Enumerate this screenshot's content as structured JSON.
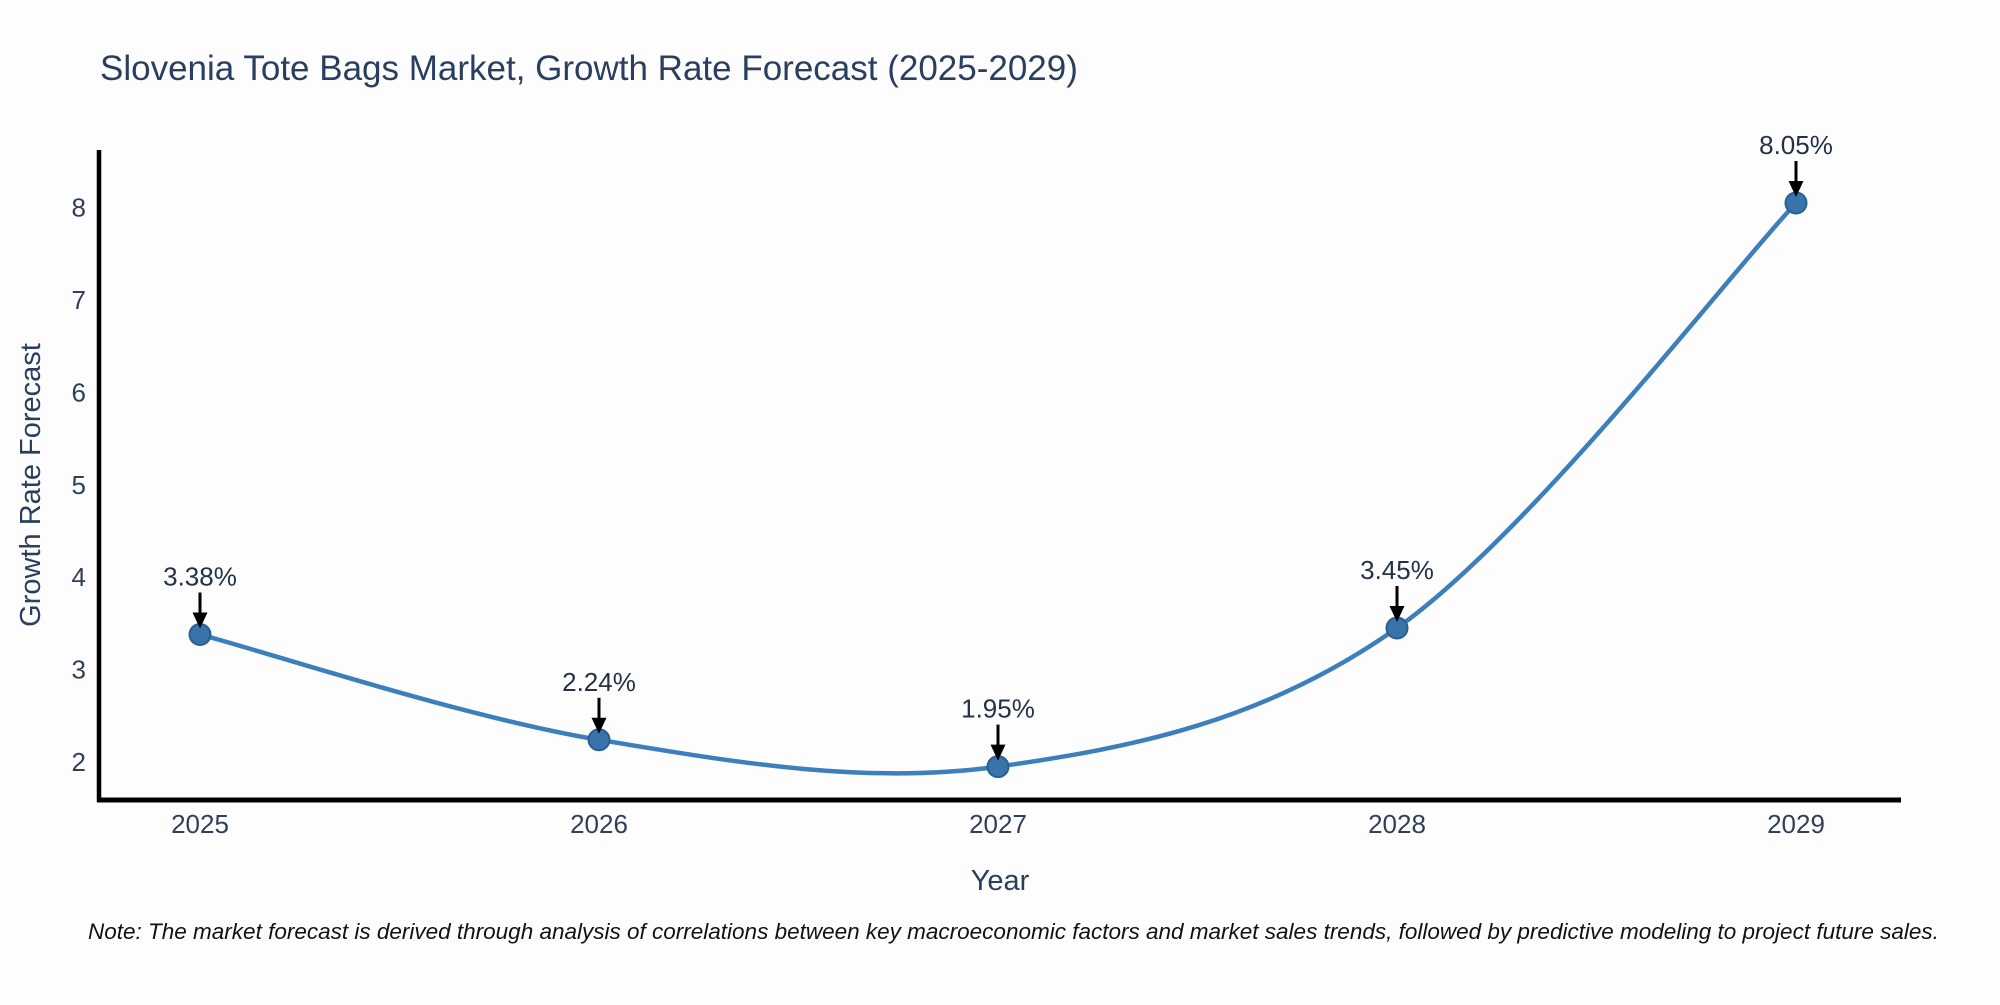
{
  "title": "Slovenia Tote Bags Market, Growth Rate Forecast (2025-2029)",
  "note": "Note: The market forecast is derived through analysis of correlations between key macroeconomic factors and market sales trends, followed by predictive modeling to project future sales.",
  "colors": {
    "line": "#3d7fba",
    "marker_fill": "#3873aa",
    "marker_edge": "#2b5f91",
    "axis_spine": "#000000",
    "text": "#2a3f5f",
    "tick_text": "#31405a",
    "annotation_text": "#243247",
    "arrow": "#000000",
    "note_text": "#111111",
    "background": "#fdfdfd"
  },
  "chart_data": {
    "type": "line",
    "title": "Slovenia Tote Bags Market, Growth Rate Forecast (2025-2029)",
    "xlabel": "Year",
    "ylabel": "Growth Rate Forecast",
    "x": [
      2025,
      2026,
      2027,
      2028,
      2029
    ],
    "series": [
      {
        "name": "Growth Rate Forecast",
        "values": [
          3.38,
          2.24,
          1.95,
          3.45,
          8.05
        ],
        "point_labels": [
          "3.38%",
          "2.24%",
          "1.95%",
          "3.45%",
          "8.05%"
        ]
      }
    ],
    "xticks": [
      "2025",
      "2026",
      "2027",
      "2028",
      "2029"
    ],
    "yticks": [
      2,
      3,
      4,
      5,
      6,
      7,
      8
    ],
    "xlim": [
      2024.74,
      2029.26
    ],
    "ylim": [
      1.59,
      8.62
    ],
    "grid": false,
    "legend": false,
    "line_shape": "spline",
    "marker": "circle",
    "annotation_style": "value above point with down arrow",
    "unit": "%"
  }
}
